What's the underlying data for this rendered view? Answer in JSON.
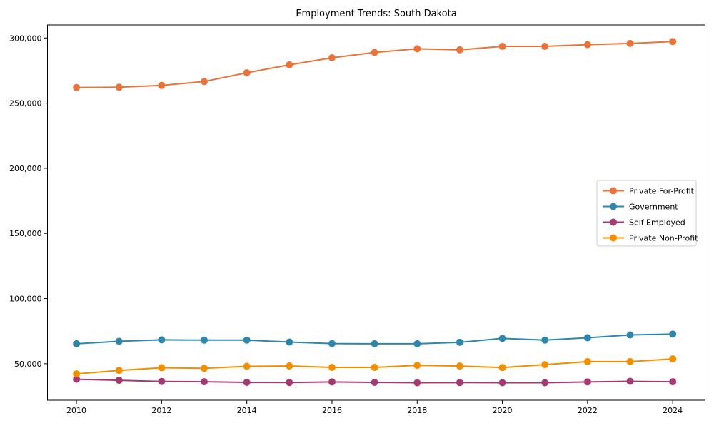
{
  "chart_data": {
    "type": "line",
    "title": "Employment Trends: South Dakota",
    "xlabel": "",
    "ylabel": "",
    "x": [
      2010,
      2011,
      2012,
      2013,
      2014,
      2015,
      2016,
      2017,
      2018,
      2019,
      2020,
      2021,
      2022,
      2023,
      2024
    ],
    "series": [
      {
        "name": "Private For-Profit",
        "color": "#E8743B",
        "values": [
          262000,
          262200,
          263600,
          266600,
          273300,
          279400,
          284800,
          288900,
          291700,
          290900,
          293600,
          293600,
          294900,
          295800,
          297300
        ]
      },
      {
        "name": "Government",
        "color": "#2E86AB",
        "values": [
          65300,
          67200,
          68300,
          68100,
          68100,
          66600,
          65500,
          65300,
          65300,
          66400,
          69400,
          68100,
          69900,
          72100,
          72700
        ]
      },
      {
        "name": "Self-Employed",
        "color": "#A23B72",
        "values": [
          38100,
          37300,
          36400,
          36200,
          35700,
          35600,
          36000,
          35700,
          35400,
          35500,
          35400,
          35400,
          36000,
          36500,
          36200
        ]
      },
      {
        "name": "Private Non-Profit",
        "color": "#F18F01",
        "values": [
          42200,
          44900,
          46900,
          46500,
          48000,
          48300,
          47200,
          47200,
          48800,
          48200,
          47100,
          49300,
          51600,
          51600,
          53700
        ]
      }
    ],
    "xticks": {
      "values": [
        2010,
        2012,
        2014,
        2016,
        2018,
        2020,
        2022,
        2024
      ],
      "labels": [
        "2010",
        "2012",
        "2014",
        "2016",
        "2018",
        "2020",
        "2022",
        "2024"
      ]
    },
    "yticks": {
      "values": [
        50000,
        100000,
        150000,
        200000,
        250000,
        300000
      ],
      "labels": [
        "50,000",
        "100,000",
        "150,000",
        "200,000",
        "250,000",
        "300,000"
      ]
    },
    "xlim": [
      2009.32,
      2024.76
    ],
    "ylim": [
      22000,
      310000
    ],
    "grid": false,
    "legend_position": "right",
    "background_color": "#ffffff",
    "axis_color": "#000000",
    "legend_border_color": "#cccccc"
  }
}
